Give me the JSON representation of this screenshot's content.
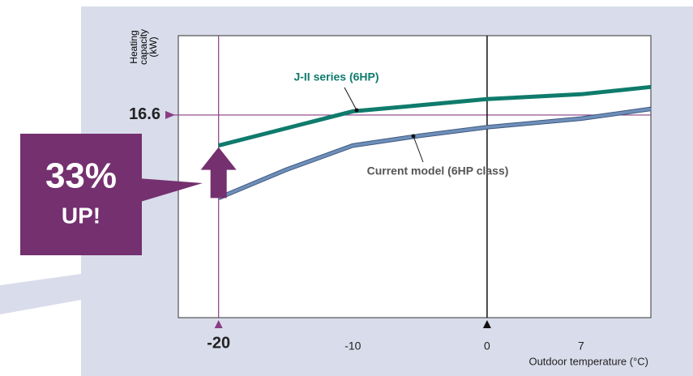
{
  "chart_data": {
    "type": "line",
    "ylabel": [
      "Heating",
      "capacity",
      "(kW)"
    ],
    "xlabel": "Outdoor temperature (°C)",
    "x": [
      -20,
      -15,
      -10,
      -5,
      0,
      7,
      12.2
    ],
    "series": [
      {
        "name": "J-II series (6HP)",
        "color": "#0f7b6c",
        "values": [
          14.1,
          15.5,
          16.9,
          17.4,
          17.9,
          18.3,
          18.9
        ]
      },
      {
        "name": "Current model (6HP class)",
        "color": "#6f8fba",
        "values": [
          9.8,
          12.1,
          14.1,
          14.9,
          15.6,
          16.3,
          17.1
        ]
      }
    ],
    "xlim": [
      -23,
      12.2
    ],
    "ylim": [
      0,
      23.1
    ],
    "xticks": [
      -20,
      -10,
      0,
      7
    ],
    "yticks": [
      16.6
    ],
    "annotations": [
      "33%",
      "UP!"
    ]
  }
}
